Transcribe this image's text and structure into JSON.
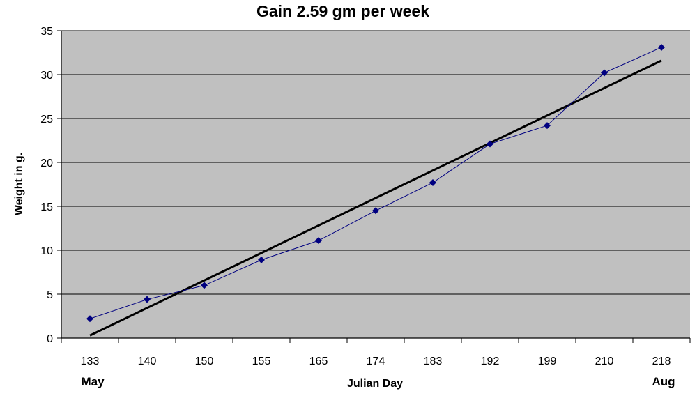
{
  "chart_data": {
    "type": "line",
    "title": "Gain 2.59 gm per week",
    "xlabel": "Julian Day",
    "ylabel": "Weight in g.",
    "categories": [
      "133",
      "140",
      "150",
      "155",
      "165",
      "174",
      "183",
      "192",
      "199",
      "210",
      "218"
    ],
    "series": [
      {
        "values": [
          2.2,
          4.4,
          6.0,
          8.9,
          11.1,
          14.5,
          17.7,
          22.1,
          24.2,
          30.2,
          33.1
        ]
      }
    ],
    "trendline": {
      "start": 0.3,
      "end": 31.6
    },
    "ylim": [
      0,
      35
    ],
    "yticks": [
      0,
      5,
      10,
      15,
      20,
      25,
      30,
      35
    ],
    "month_labels": {
      "start": "May",
      "end": "Aug"
    },
    "grid": true,
    "colors": {
      "plot_area": "#c0c0c0",
      "series": "#000080",
      "trendline": "#000000"
    }
  }
}
